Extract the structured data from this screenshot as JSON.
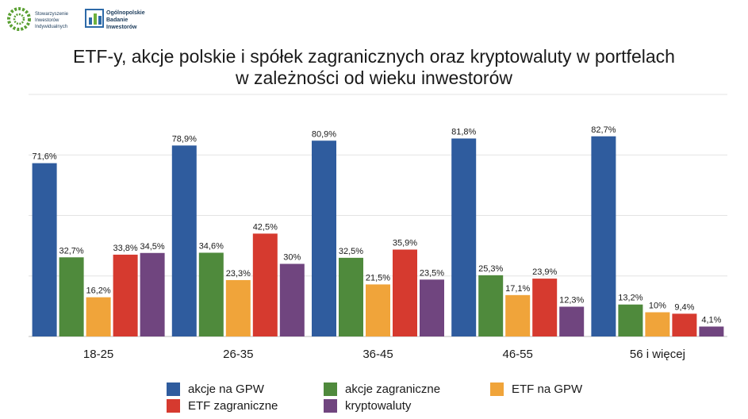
{
  "logos": {
    "left_lines": [
      "Stowarzyszenie",
      "Inwestorów",
      "Indywidualnych"
    ],
    "right_lines": [
      "Ogólnopolskie",
      "Badanie",
      "Inwestorów"
    ]
  },
  "chart_data": {
    "type": "bar",
    "title_lines": [
      "ETF-y, akcje polskie i spółek zagranicznych  oraz kryptowaluty w portfelach",
      "w zależności od wieku inwestorów"
    ],
    "categories": [
      "18-25",
      "26-35",
      "36-45",
      "46-55",
      "56 i więcej"
    ],
    "series": [
      {
        "name": "akcje na GPW",
        "color": "#2f5c9e",
        "values": [
          71.6,
          78.9,
          80.9,
          81.8,
          82.7
        ],
        "labels": [
          "71,6%",
          "78,9%",
          "80,9%",
          "81,8%",
          "82,7%"
        ]
      },
      {
        "name": "akcje zagraniczne",
        "color": "#4f8a3c",
        "values": [
          32.7,
          34.6,
          32.5,
          25.3,
          13.2
        ],
        "labels": [
          "32,7%",
          "34,6%",
          "32,5%",
          "25,3%",
          "13,2%"
        ]
      },
      {
        "name": "ETF na GPW",
        "color": "#f0a43a",
        "values": [
          16.2,
          23.3,
          21.5,
          17.1,
          10
        ],
        "labels": [
          "16,2%",
          "23,3%",
          "21,5%",
          "17,1%",
          "10%"
        ]
      },
      {
        "name": "ETF zagraniczne",
        "color": "#d63a2f",
        "values": [
          33.8,
          42.5,
          35.9,
          23.9,
          9.4
        ],
        "labels": [
          "33,8%",
          "42,5%",
          "35,9%",
          "23,9%",
          "9,4%"
        ]
      },
      {
        "name": "kryptowaluty",
        "color": "#70457f",
        "values": [
          34.5,
          30,
          23.5,
          12.3,
          4.1
        ],
        "labels": [
          "34,5%",
          "30%",
          "23,5%",
          "12,3%",
          "4,1%"
        ]
      }
    ],
    "ylim": [
      0,
      100
    ],
    "grid": true,
    "legend_position": "bottom"
  }
}
